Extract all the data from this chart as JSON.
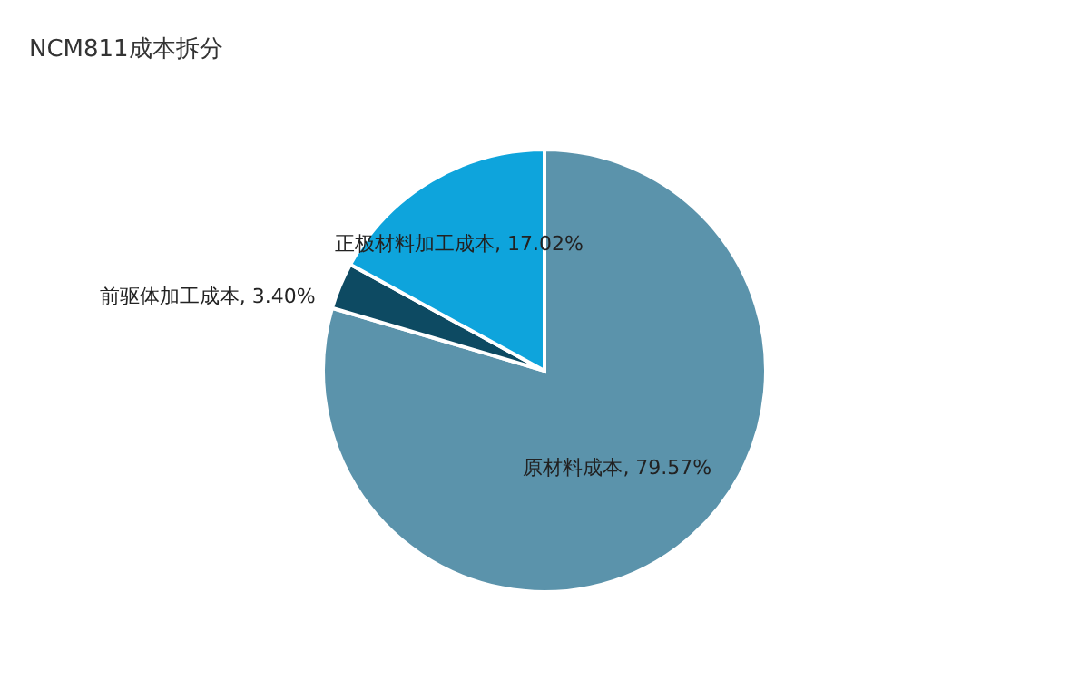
{
  "chart_data": {
    "type": "pie",
    "title": "NCM811成本拆分",
    "categories": [
      "原材料成本",
      "前驱体加工成本",
      "正极材料加工成本"
    ],
    "values": [
      79.57,
      3.4,
      17.02
    ],
    "value_labels": [
      "79.57%",
      "3.40%",
      "17.02%"
    ],
    "colors": [
      "#5b93ab",
      "#0d4a62",
      "#0ea4dc"
    ],
    "legend": false
  }
}
